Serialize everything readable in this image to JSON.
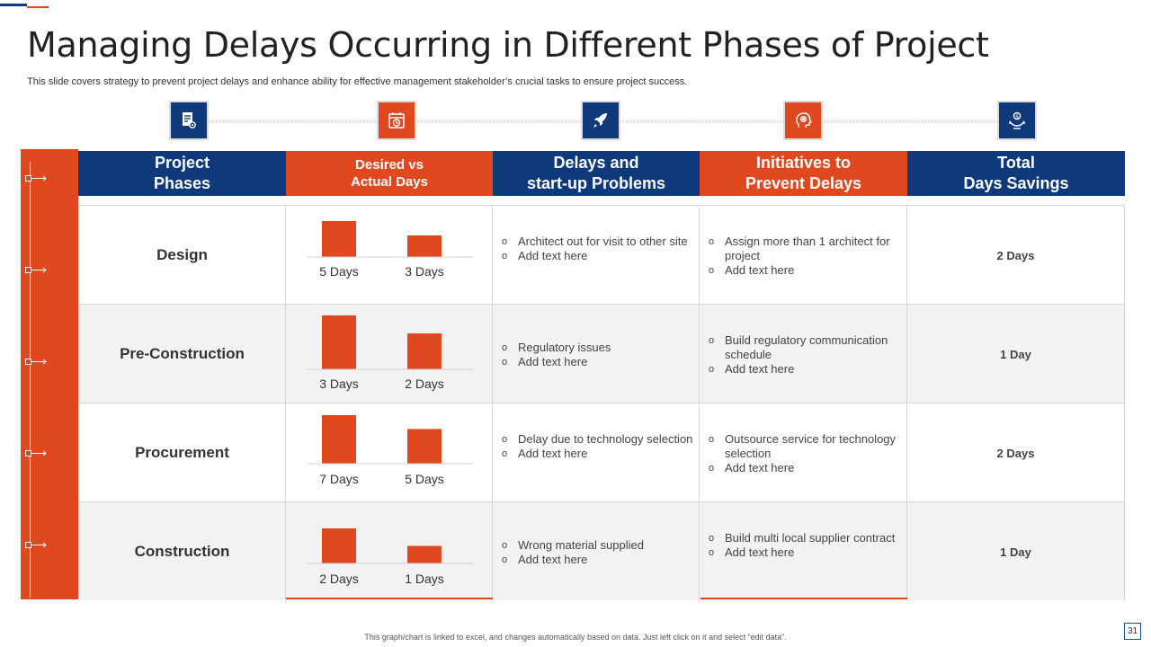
{
  "slide": {
    "title": "Managing Delays Occurring in Different Phases of Project",
    "subtitle": "This slide covers strategy to prevent project delays and enhance ability for effective management stakeholder’s crucial tasks to ensure project success.",
    "footer_note": "This graph/chart is linked to excel, and changes automatically based on data. Just left click on it and select “edit data”.",
    "page_number": "31"
  },
  "colors": {
    "navy": "#0e3a7c",
    "orange": "#e0491f",
    "shade": "#f2f2f2"
  },
  "icons": [
    "document-gear-icon",
    "calendar-clock-icon",
    "rocket-icon",
    "head-gear-icon",
    "hand-money-icon"
  ],
  "headers": [
    {
      "line1": "Project",
      "line2": "Phases"
    },
    {
      "line1": "Desired vs",
      "line2": "Actual Days"
    },
    {
      "line1": "Delays and",
      "line2": "start-up Problems"
    },
    {
      "line1": "Initiatives to",
      "line2": "Prevent Delays"
    },
    {
      "line1": "Total",
      "line2": "Days Savings"
    }
  ],
  "rows": [
    {
      "phase": "Design",
      "desired_label": "5 Days",
      "actual_label": "3 Days",
      "problems": [
        "Architect out for visit to other site",
        "Add text here"
      ],
      "initiatives": [
        "Assign more than 1 architect for project",
        "Add text here"
      ],
      "savings": "2 Days"
    },
    {
      "phase": "Pre-Construction",
      "desired_label": "3 Days",
      "actual_label": "2 Days",
      "problems": [
        "Regulatory issues",
        "Add text here"
      ],
      "initiatives": [
        "Build regulatory communication schedule",
        "Add text here"
      ],
      "savings": "1 Day"
    },
    {
      "phase": "Procurement",
      "desired_label": "7 Days",
      "actual_label": "5 Days",
      "problems": [
        "Delay due to technology selection",
        "Add text here"
      ],
      "initiatives": [
        "Outsource service for technology selection",
        "Add text here"
      ],
      "savings": "2 Days"
    },
    {
      "phase": "Construction",
      "desired_label": "2 Days",
      "actual_label": "1 Days",
      "problems": [
        "Wrong material supplied",
        "Add text here"
      ],
      "initiatives": [
        "Build multi local supplier contract",
        "Add text here"
      ],
      "savings": "1 Day"
    }
  ],
  "chart_data": [
    {
      "type": "bar",
      "title": "Design",
      "categories": [
        "Desired",
        "Actual"
      ],
      "values": [
        5,
        3
      ],
      "labels": [
        "5 Days",
        "3 Days"
      ]
    },
    {
      "type": "bar",
      "title": "Pre-Construction",
      "categories": [
        "Desired",
        "Actual"
      ],
      "values": [
        3,
        2
      ],
      "labels": [
        "3 Days",
        "2 Days"
      ]
    },
    {
      "type": "bar",
      "title": "Procurement",
      "categories": [
        "Desired",
        "Actual"
      ],
      "values": [
        7,
        5
      ],
      "labels": [
        "7 Days",
        "5 Days"
      ]
    },
    {
      "type": "bar",
      "title": "Construction",
      "categories": [
        "Desired",
        "Actual"
      ],
      "values": [
        2,
        1
      ],
      "labels": [
        "2 Days",
        "1 Days"
      ]
    }
  ]
}
